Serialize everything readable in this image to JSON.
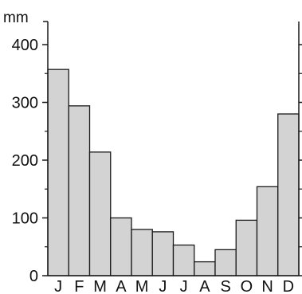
{
  "chart_data": {
    "type": "bar",
    "unit": "mm",
    "categories": [
      "J",
      "F",
      "M",
      "A",
      "M",
      "J",
      "J",
      "A",
      "S",
      "O",
      "N",
      "D"
    ],
    "values": [
      357,
      294,
      214,
      100,
      80,
      76,
      53,
      24,
      45,
      96,
      154,
      280
    ],
    "ylim": [
      0,
      440
    ],
    "yticks": [
      0,
      100,
      200,
      300,
      400
    ],
    "yticks_minor": [
      50,
      150,
      250,
      350
    ],
    "y_tick_labels": [
      "0",
      "100",
      "200",
      "300",
      "400"
    ],
    "grid": false,
    "colors": {
      "bar_fill": "#d3d3d3",
      "bar_stroke": "#1a1a1a",
      "axis": "#1a1a1a"
    }
  }
}
